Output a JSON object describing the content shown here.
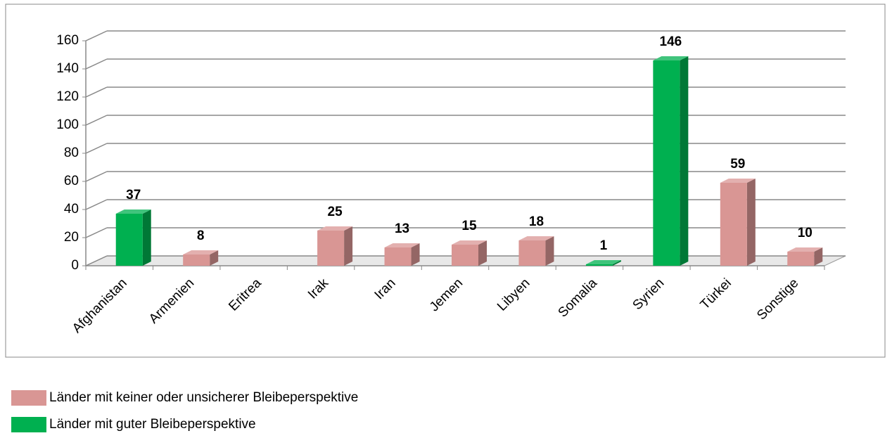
{
  "chart_data": {
    "type": "bar3d",
    "categories": [
      "Afghanistan",
      "Armenien",
      "Eritrea",
      "Irak",
      "Iran",
      "Jemen",
      "Libyen",
      "Somalia",
      "Syrien",
      "Türkei",
      "Sonstige"
    ],
    "series": [
      {
        "name": "Länder mit keiner oder unsicherer Bleibeperspektive",
        "color": "#d99694",
        "values": [
          null,
          8,
          null,
          25,
          13,
          15,
          18,
          null,
          null,
          59,
          10
        ]
      },
      {
        "name": "Länder mit guter Bleibeperspektive",
        "color": "#00b050",
        "values": [
          37,
          null,
          null,
          null,
          null,
          null,
          null,
          1,
          146,
          null,
          null
        ]
      }
    ],
    "ylim": [
      0,
      160
    ],
    "yticks": [
      0,
      20,
      40,
      60,
      80,
      100,
      120,
      140,
      160
    ],
    "grid": true,
    "legend": "bottom"
  }
}
